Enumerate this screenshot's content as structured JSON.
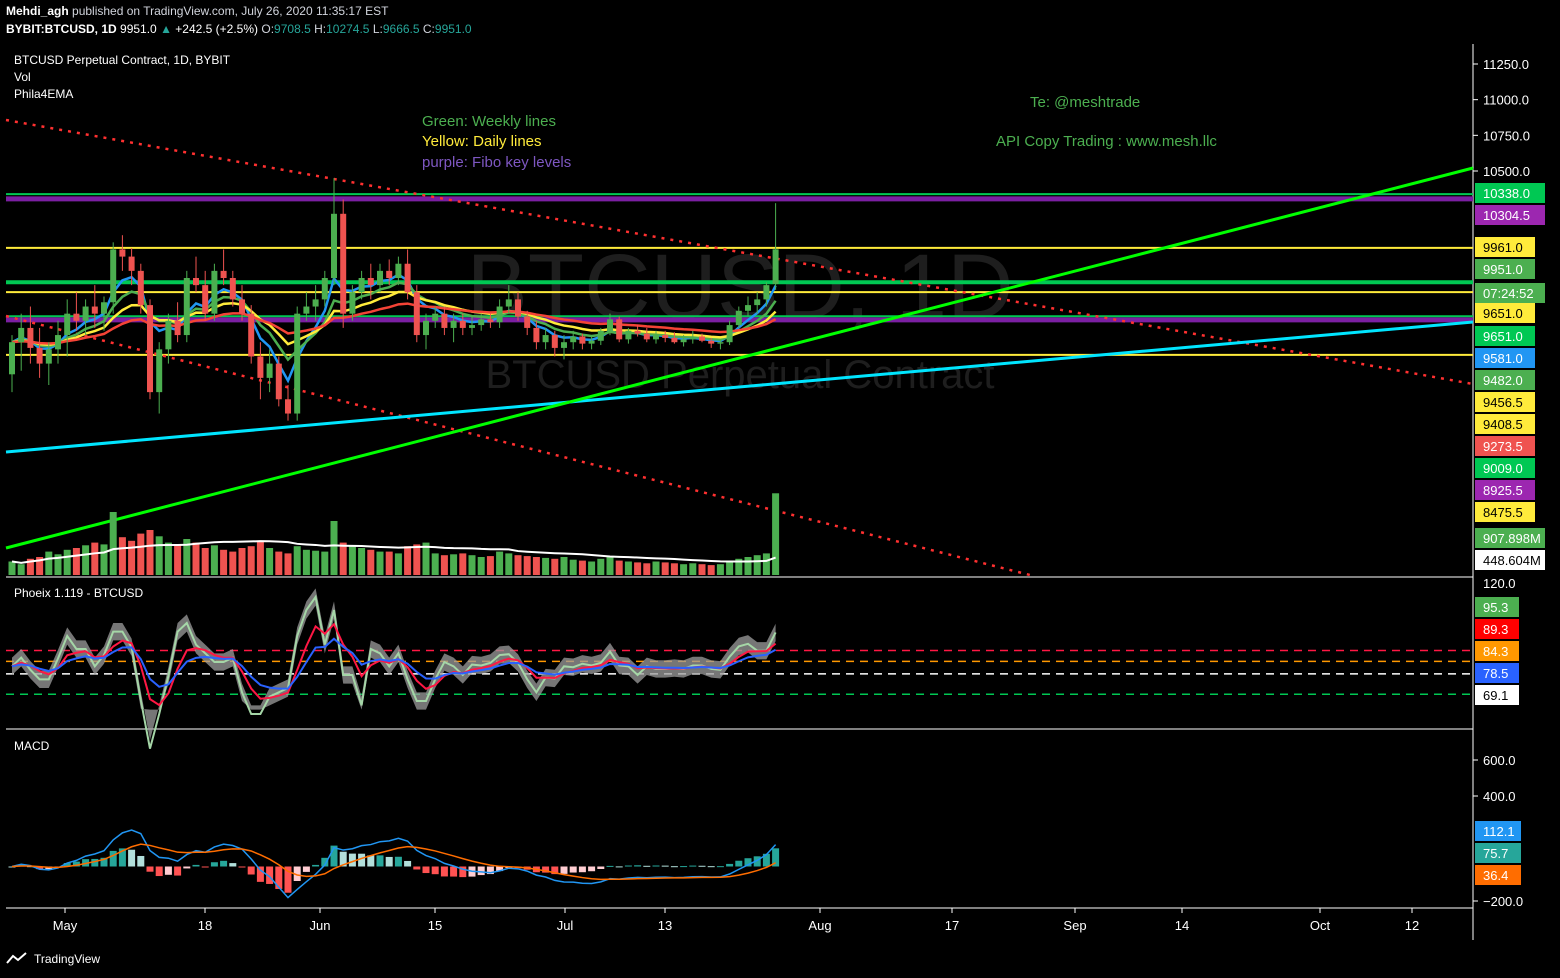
{
  "header": {
    "author": "Mehdi_agh",
    "published_text": "published on TradingView.com, July 26, 2020 11:35:17 EST",
    "symbol": "BYBIT:BTCUSD, 1D",
    "last": "9951.0",
    "change": "+242.5 (+2.5%)",
    "o_label": "O:",
    "o": "9708.5",
    "h_label": "H:",
    "h": "10274.5",
    "l_label": "L:",
    "l": "9666.5",
    "c_label": "C:",
    "c": "9951.0"
  },
  "legend": {
    "title": "BTCUSD Perpetual Contract, 1D, BYBIT",
    "vol": "Vol",
    "indicator": "Phila4EMA",
    "oscillator": "Phoeix 1.119 - BTCUSD",
    "macd": "MACD"
  },
  "watermark": {
    "big": "BTCUSD, 1D",
    "small": "BTCUSD Perpetual Contract"
  },
  "notes": {
    "green": "Green: Weekly lines",
    "yellow": "Yellow: Daily lines",
    "purple": "purple: Fibo key levels",
    "telegram": "Te: @meshtrade",
    "api": "API Copy Trading : www.mesh.llc"
  },
  "footer": {
    "brand": "TradingView"
  },
  "colors": {
    "up": "#4caf50",
    "down": "#ef5350",
    "green_line": "#00ff00",
    "yellow_line": "#ffff00",
    "purple_line": "#7b1fa2",
    "cyan_line": "#00e5ff",
    "red_dotted": "#ff3030"
  },
  "chart_data": [
    {
      "type": "candlestick",
      "title": "BTCUSD Perpetual Contract, 1D, BYBIT",
      "x_ticks": [
        "May",
        "18",
        "Jun",
        "15",
        "Jul",
        "13",
        "Aug",
        "17",
        "Sep",
        "14",
        "Oct",
        "12"
      ],
      "y_ticks": [
        "11250.0",
        "11000.0",
        "10750.0",
        "10500.0"
      ],
      "price_labels": [
        {
          "value": "10338.0",
          "color": "#00c853"
        },
        {
          "value": "10304.5",
          "color": "#9c27b0"
        },
        {
          "value": "9961.0",
          "color": "#ffeb3b"
        },
        {
          "value": "9951.0",
          "color": "#4caf50"
        },
        {
          "value": "07:24:52",
          "color": "#4caf50"
        },
        {
          "value": "9651.0",
          "color": "#ffeb3b"
        },
        {
          "value": "9651.0",
          "color": "#00c853"
        },
        {
          "value": "9581.0",
          "color": "#2196f3"
        },
        {
          "value": "9482.0",
          "color": "#4caf50"
        },
        {
          "value": "9456.5",
          "color": "#ffeb3b"
        },
        {
          "value": "9408.5",
          "color": "#ffeb3b"
        },
        {
          "value": "9273.5",
          "color": "#ef5350"
        },
        {
          "value": "9009.0",
          "color": "#00c853"
        },
        {
          "value": "8925.5",
          "color": "#9c27b0"
        },
        {
          "value": "8475.5",
          "color": "#ffeb3b"
        },
        {
          "value": "907.898M",
          "color": "#4caf50"
        },
        {
          "value": "448.604M",
          "color": "#ffffff"
        }
      ],
      "horizontal_levels": [
        {
          "price": 10338.0,
          "kind": "weekly",
          "color": "#00c853"
        },
        {
          "price": 10304.5,
          "kind": "fibo",
          "color": "#7b1fa2"
        },
        {
          "price": 9961.0,
          "kind": "daily",
          "color": "#ffeb3b"
        },
        {
          "price": 9720.0,
          "kind": "weekly",
          "color": "#00c853"
        },
        {
          "price": 9651.0,
          "kind": "daily",
          "color": "#ffeb3b"
        },
        {
          "price": 9482.0,
          "kind": "weekly",
          "color": "#00c853"
        },
        {
          "price": 9456.5,
          "kind": "fibo",
          "color": "#7b1fa2"
        },
        {
          "price": 9211.0,
          "kind": "daily",
          "color": "#ffeb3b"
        }
      ],
      "candles": [
        [
          9075,
          9350,
          8950,
          9300
        ],
        [
          9300,
          9500,
          9100,
          9400
        ],
        [
          9400,
          9550,
          9150,
          9260
        ],
        [
          9260,
          9400,
          9050,
          9150
        ],
        [
          9150,
          9300,
          9000,
          9250
        ],
        [
          9250,
          9450,
          9150,
          9350
        ],
        [
          9350,
          9600,
          9200,
          9500
        ],
        [
          9500,
          9650,
          9380,
          9450
        ],
        [
          9450,
          9600,
          9350,
          9550
        ],
        [
          9550,
          9700,
          9400,
          9500
        ],
        [
          9500,
          9620,
          9380,
          9580
        ],
        [
          9580,
          10000,
          9500,
          9950
        ],
        [
          9950,
          10050,
          9800,
          9900
        ],
        [
          9900,
          9960,
          9700,
          9800
        ],
        [
          9800,
          9850,
          9500,
          9560
        ],
        [
          9560,
          9600,
          8900,
          8950
        ],
        [
          8950,
          9300,
          8800,
          9250
        ],
        [
          9250,
          9500,
          9150,
          9450
        ],
        [
          9450,
          9580,
          9300,
          9350
        ],
        [
          9350,
          9800,
          9300,
          9750
        ],
        [
          9750,
          9900,
          9650,
          9700
        ],
        [
          9700,
          9800,
          9450,
          9500
        ],
        [
          9500,
          9850,
          9450,
          9800
        ],
        [
          9800,
          9950,
          9700,
          9750
        ],
        [
          9750,
          9800,
          9550,
          9600
        ],
        [
          9600,
          9700,
          9450,
          9500
        ],
        [
          9500,
          9560,
          9150,
          9200
        ],
        [
          9200,
          9300,
          8900,
          9050
        ],
        [
          9050,
          9250,
          8950,
          9150
        ],
        [
          9150,
          9200,
          8850,
          8900
        ],
        [
          8900,
          9000,
          8750,
          8800
        ],
        [
          8800,
          9550,
          8750,
          9500
        ],
        [
          9500,
          9650,
          9450,
          9550
        ],
        [
          9550,
          9700,
          9450,
          9600
        ],
        [
          9600,
          9800,
          9550,
          9750
        ],
        [
          9750,
          10450,
          9700,
          10200
        ],
        [
          10200,
          10300,
          9400,
          9500
        ],
        [
          9500,
          9700,
          9450,
          9650
        ],
        [
          9650,
          9800,
          9600,
          9750
        ],
        [
          9750,
          9850,
          9600,
          9700
        ],
        [
          9700,
          9850,
          9650,
          9800
        ],
        [
          9800,
          9880,
          9700,
          9750
        ],
        [
          9750,
          9900,
          9700,
          9850
        ],
        [
          9850,
          9950,
          9600,
          9650
        ],
        [
          9650,
          9700,
          9300,
          9350
        ],
        [
          9350,
          9500,
          9250,
          9450
        ],
        [
          9450,
          9550,
          9400,
          9500
        ],
        [
          9500,
          9550,
          9350,
          9400
        ],
        [
          9400,
          9500,
          9300,
          9450
        ],
        [
          9450,
          9500,
          9350,
          9400
        ],
        [
          9400,
          9480,
          9350,
          9420
        ],
        [
          9420,
          9500,
          9380,
          9460
        ],
        [
          9460,
          9500,
          9400,
          9440
        ],
        [
          9440,
          9600,
          9400,
          9550
        ],
        [
          9550,
          9700,
          9500,
          9600
        ],
        [
          9600,
          9650,
          9450,
          9480
        ],
        [
          9480,
          9520,
          9350,
          9400
        ],
        [
          9400,
          9450,
          9250,
          9300
        ],
        [
          9300,
          9400,
          9250,
          9350
        ],
        [
          9350,
          9380,
          9200,
          9260
        ],
        [
          9260,
          9350,
          9180,
          9300
        ],
        [
          9300,
          9380,
          9250,
          9340
        ],
        [
          9340,
          9360,
          9250,
          9290
        ],
        [
          9290,
          9350,
          9250,
          9310
        ],
        [
          9310,
          9400,
          9280,
          9380
        ],
        [
          9380,
          9500,
          9350,
          9460
        ],
        [
          9460,
          9480,
          9300,
          9320
        ],
        [
          9320,
          9400,
          9290,
          9380
        ],
        [
          9380,
          9420,
          9340,
          9360
        ],
        [
          9360,
          9400,
          9300,
          9320
        ],
        [
          9320,
          9380,
          9290,
          9350
        ],
        [
          9350,
          9380,
          9300,
          9330
        ],
        [
          9330,
          9370,
          9290,
          9300
        ],
        [
          9300,
          9350,
          9270,
          9320
        ],
        [
          9320,
          9380,
          9290,
          9340
        ],
        [
          9340,
          9360,
          9300,
          9310
        ],
        [
          9310,
          9330,
          9260,
          9290
        ],
        [
          9290,
          9320,
          9250,
          9300
        ],
        [
          9300,
          9450,
          9280,
          9420
        ],
        [
          9420,
          9550,
          9400,
          9520
        ],
        [
          9520,
          9620,
          9480,
          9560
        ],
        [
          9560,
          9650,
          9500,
          9600
        ],
        [
          9600,
          9720,
          9550,
          9700
        ],
        [
          9708.5,
          10274.5,
          9666.5,
          9951
        ]
      ],
      "volume_million": [
        150,
        120,
        180,
        200,
        260,
        230,
        280,
        300,
        330,
        360,
        340,
        700,
        420,
        380,
        460,
        500,
        430,
        360,
        330,
        400,
        360,
        300,
        330,
        280,
        260,
        300,
        320,
        380,
        300,
        260,
        240,
        320,
        280,
        270,
        260,
        600,
        360,
        320,
        300,
        280,
        260,
        260,
        240,
        320,
        340,
        360,
        240,
        220,
        230,
        240,
        220,
        200,
        210,
        260,
        240,
        220,
        210,
        200,
        190,
        180,
        200,
        170,
        160,
        150,
        180,
        200,
        160,
        150,
        140,
        130,
        150,
        140,
        130,
        120,
        130,
        120,
        110,
        120,
        160,
        180,
        200,
        220,
        240,
        907.898
      ],
      "volume_ma_million": 448.604
    },
    {
      "type": "line",
      "title": "Phoeix 1.119 - BTCUSD",
      "y_ticks": [
        "120.0"
      ],
      "levels": [
        89.3,
        84.3,
        78.5,
        69.1
      ],
      "labels": [
        {
          "value": "95.3",
          "color": "#4caf50"
        },
        {
          "value": "89.3",
          "color": "#ff0000"
        },
        {
          "value": "84.3",
          "color": "#ff9800"
        },
        {
          "value": "78.5",
          "color": "#2962ff"
        },
        {
          "value": "69.1",
          "color": "#ffffff"
        }
      ]
    },
    {
      "type": "bar",
      "title": "MACD",
      "y_ticks": [
        "600.0",
        "400.0",
        "−200.0"
      ],
      "labels": [
        {
          "value": "112.1",
          "color": "#2196f3"
        },
        {
          "value": "75.7",
          "color": "#26a69a"
        },
        {
          "value": "36.4",
          "color": "#ff6d00"
        }
      ]
    }
  ]
}
